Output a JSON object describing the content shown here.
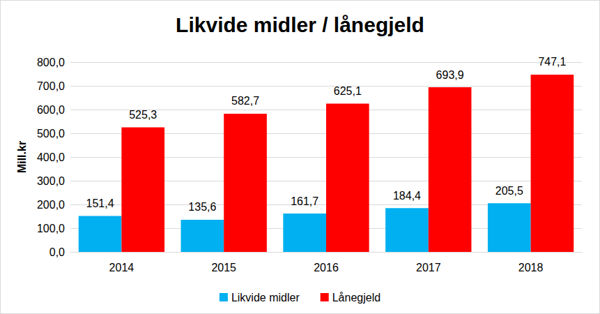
{
  "chart_data": {
    "type": "bar",
    "title": "Likvide midler / lånegjeld",
    "y_label": "Mill.kr",
    "categories": [
      "2014",
      "2015",
      "2016",
      "2017",
      "2018"
    ],
    "series": [
      {
        "name": "Likvide midler",
        "color": "#00b0f0",
        "values": [
          151.4,
          135.6,
          161.7,
          184.4,
          205.5
        ],
        "value_labels": [
          "151,4",
          "135,6",
          "161,7",
          "184,4",
          "205,5"
        ]
      },
      {
        "name": "Lånegjeld",
        "color": "#ff0000",
        "values": [
          525.3,
          582.7,
          625.1,
          693.9,
          747.1
        ],
        "value_labels": [
          "525,3",
          "582,7",
          "625,1",
          "693,9",
          "747,1"
        ]
      }
    ],
    "ylim": [
      0,
      800
    ],
    "yticks": [
      {
        "value": 0,
        "label": "0,0"
      },
      {
        "value": 100,
        "label": "100,0"
      },
      {
        "value": 200,
        "label": "200,0"
      },
      {
        "value": 300,
        "label": "300,0"
      },
      {
        "value": 400,
        "label": "400,0"
      },
      {
        "value": 500,
        "label": "500,0"
      },
      {
        "value": 600,
        "label": "600,0"
      },
      {
        "value": 700,
        "label": "700,0"
      },
      {
        "value": 800,
        "label": "800,0"
      }
    ],
    "grid": true,
    "legend": "bottom",
    "data_labels": true
  }
}
